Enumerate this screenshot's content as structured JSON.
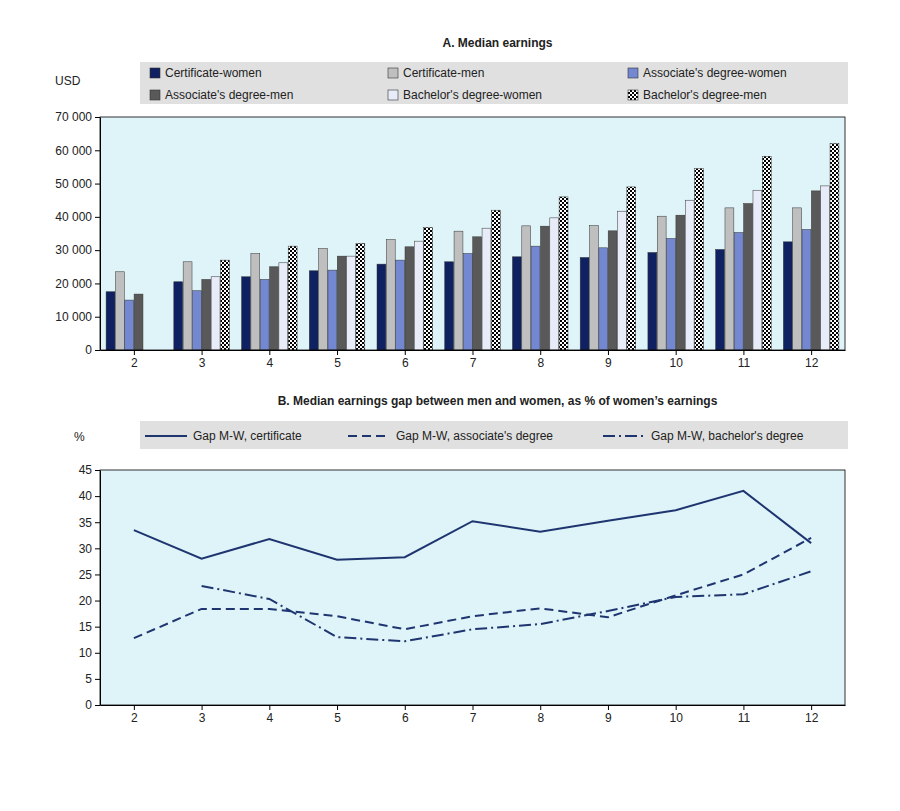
{
  "chart_data": [
    {
      "type": "bar",
      "title": "A. Median earnings",
      "y_label": "USD",
      "categories": [
        "2",
        "3",
        "4",
        "5",
        "6",
        "7",
        "8",
        "9",
        "10",
        "11",
        "12"
      ],
      "series": [
        {
          "name": "Certificate-women",
          "color": "#0f2160",
          "values": [
            17500,
            20500,
            22000,
            23800,
            25800,
            26500,
            28000,
            27800,
            29300,
            30200,
            32500
          ]
        },
        {
          "name": "Certificate-men",
          "color": "#bfbfbf",
          "values": [
            23500,
            26500,
            29000,
            30500,
            33200,
            35700,
            37300,
            37400,
            40200,
            42700,
            42700
          ]
        },
        {
          "name": "Associate's degree-women",
          "color": "#7388d0",
          "values": [
            15000,
            17800,
            21200,
            24000,
            27000,
            29000,
            31200,
            30700,
            33500,
            35300,
            36200
          ]
        },
        {
          "name": "Associate's degree-men",
          "color": "#595959",
          "values": [
            16800,
            21200,
            25000,
            28200,
            31000,
            34000,
            37200,
            35800,
            40500,
            44000,
            47800
          ]
        },
        {
          "name": "Bachelor's degree-women",
          "color": "#e8ebf8",
          "values": [
            null,
            22000,
            26200,
            28200,
            32700,
            36600,
            39700,
            41700,
            45000,
            48000,
            49300
          ]
        },
        {
          "name": "Bachelor's degree-men",
          "color": "#000000",
          "marker": "checkered",
          "values": [
            null,
            27000,
            31200,
            32000,
            36800,
            42000,
            46000,
            49000,
            54500,
            58200,
            62000
          ]
        }
      ],
      "ylim": [
        0,
        70000
      ],
      "yticks": [
        0,
        {
          "value": 10000,
          "label": "10 000"
        },
        {
          "value": 20000,
          "label": "20 000"
        },
        {
          "value": 30000,
          "label": "30 000"
        },
        {
          "value": 40000,
          "label": "40 000"
        },
        {
          "value": 50000,
          "label": "50 000"
        },
        {
          "value": 60000,
          "label": "60 000"
        },
        {
          "value": 70000,
          "label": "70 000"
        }
      ],
      "grid": false,
      "legend": "top"
    },
    {
      "type": "line",
      "title": "B. Median earnings gap between men and women, as % of women’s earnings",
      "y_label": "%",
      "categories": [
        "2",
        "3",
        "4",
        "5",
        "6",
        "7",
        "8",
        "9",
        "10",
        "11",
        "12"
      ],
      "series": [
        {
          "name": "Gap M-W, certificate",
          "color": "#1f3570",
          "line_style": "solid",
          "values": [
            33.5,
            28,
            31.8,
            27.8,
            28.3,
            35.2,
            33.2,
            35.3,
            37.3,
            41,
            31
          ]
        },
        {
          "name": "Gap M-W, associate's degree",
          "color": "#1f3570",
          "line_style": "dashed",
          "values": [
            12.8,
            18.4,
            18.4,
            17,
            14.5,
            17,
            18.5,
            16.8,
            21,
            25,
            32
          ]
        },
        {
          "name": "Gap M-W, bachelor's degree",
          "color": "#1f3570",
          "line_style": "dashdot",
          "values": [
            null,
            22.8,
            20.3,
            13,
            12.2,
            14.5,
            15.5,
            18,
            20.7,
            21.2,
            25.6
          ]
        }
      ],
      "ylim": [
        0,
        45
      ],
      "yticks": [
        0,
        5,
        10,
        15,
        20,
        25,
        30,
        35,
        40,
        45
      ],
      "grid": false,
      "legend": "top"
    }
  ]
}
